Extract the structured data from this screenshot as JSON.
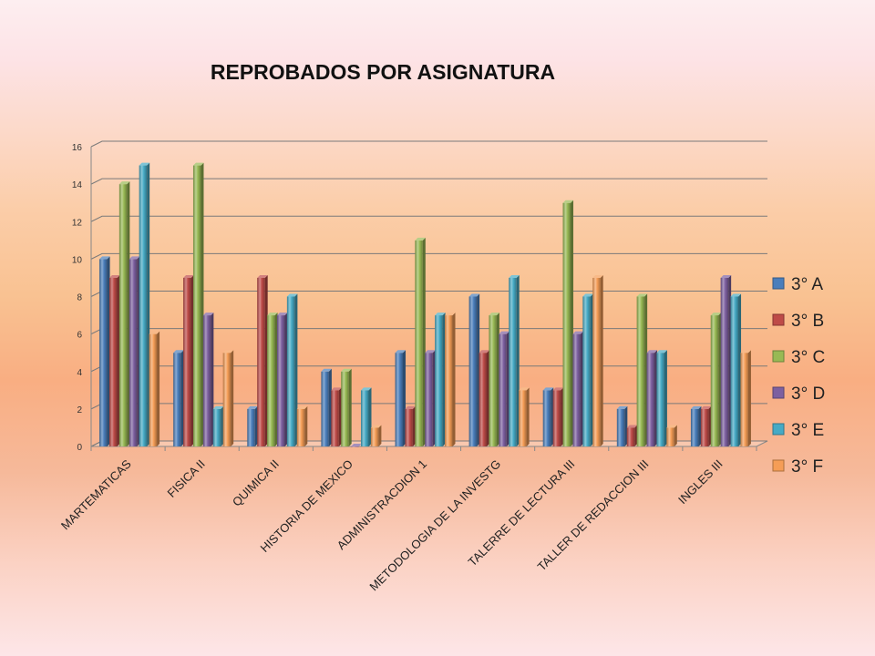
{
  "chart_data": {
    "type": "bar",
    "title": "REPROBADOS POR ASIGNATURA",
    "xlabel": "",
    "ylabel": "",
    "ylim": [
      0,
      16
    ],
    "yticks": [
      0,
      2,
      4,
      6,
      8,
      10,
      12,
      14,
      16
    ],
    "grid": true,
    "legend_position": "right",
    "categories": [
      "MARTEMATICAS",
      "FISICA II",
      "QUIMICA II",
      "HISTORIA DE MEXICO",
      "ADMINISTRACDION 1",
      "METODOLOGIA DE LA INVESTG",
      "TALERRE DE LECTURA III",
      "TALLER DE REDACCION III",
      "INGLES III"
    ],
    "series": [
      {
        "name": "3° A",
        "color": "#4a7ebb",
        "values": [
          10,
          5,
          2,
          4,
          5,
          8,
          3,
          2,
          2
        ]
      },
      {
        "name": "3° B",
        "color": "#be4b48",
        "values": [
          9,
          9,
          9,
          3,
          2,
          5,
          3,
          1,
          2
        ]
      },
      {
        "name": "3° C",
        "color": "#98b954",
        "values": [
          14,
          15,
          7,
          4,
          11,
          7,
          13,
          8,
          7
        ]
      },
      {
        "name": "3° D",
        "color": "#7d60a0",
        "values": [
          10,
          7,
          7,
          0,
          5,
          6,
          6,
          5,
          9
        ]
      },
      {
        "name": "3° E",
        "color": "#46aac5",
        "values": [
          15,
          2,
          8,
          3,
          7,
          9,
          8,
          5,
          8
        ]
      },
      {
        "name": "3° F",
        "color": "#f59d56",
        "values": [
          6,
          5,
          2,
          1,
          7,
          3,
          9,
          1,
          5
        ]
      }
    ]
  }
}
